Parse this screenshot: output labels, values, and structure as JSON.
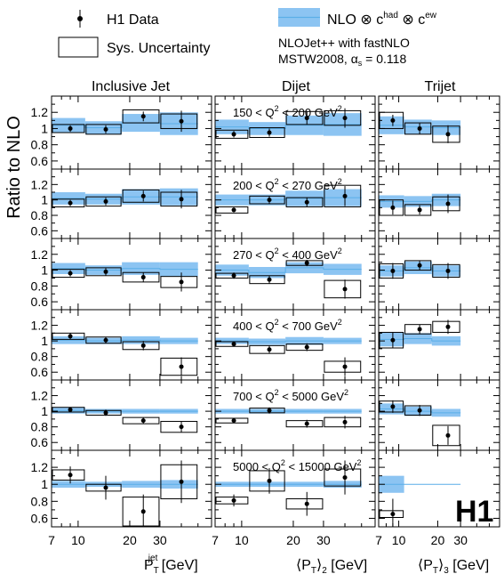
{
  "legend": {
    "data_label": "H1 Data",
    "sys_label": "Sys. Uncertainty",
    "nlo_label": "NLO ⊗ c",
    "nlo_sup1": "had",
    "nlo_mid": " ⊗ c",
    "nlo_sup2": "ew",
    "nlojet_line": "NLOJet++ with fastNLO",
    "mstw_line": "MSTW2008, α",
    "alpha_sub": "s",
    "alpha_val": " = 0.118"
  },
  "logo": "H1",
  "colors": {
    "nlo_band": "#8cc4f2",
    "nlo_line": "#5aaee8",
    "data": "#000000"
  },
  "chart_data": {
    "type": "scatter",
    "ylabel": "Ratio to NLO",
    "ylim": [
      0.5,
      1.4
    ],
    "yticks": [
      0.6,
      0.8,
      1,
      1.2
    ],
    "ytick_labels": [
      "0.6",
      "0.8",
      "1",
      "1.2"
    ],
    "x_scale": "log",
    "xlim": [
      7,
      60
    ],
    "xticks_labeled": [
      7,
      10,
      20,
      30
    ],
    "xtick_labels": [
      "7",
      "10",
      "20",
      "30"
    ],
    "xticks_minor": [
      8,
      9,
      40,
      50
    ],
    "columns": [
      {
        "title": "Inclusive Jet",
        "xlabel": "P",
        "xsup": "jet",
        "xsub": "T",
        "xunit": " [GeV]",
        "bins": [
          [
            7,
            11
          ],
          [
            11,
            18
          ],
          [
            18,
            30
          ],
          [
            30,
            50
          ]
        ],
        "x": [
          9,
          14.5,
          24,
          40
        ]
      },
      {
        "title": "Dijet",
        "xlabel": "⟨P",
        "xsub": "T",
        "xafter": "⟩",
        "xsub2": "2",
        "xunit": " [GeV]",
        "bins": [
          [
            5,
            11
          ],
          [
            11,
            18
          ],
          [
            18,
            30
          ],
          [
            30,
            50
          ]
        ],
        "x": [
          9,
          14.5,
          24,
          40
        ]
      },
      {
        "title": "Trijet",
        "xlabel": "⟨P",
        "xsub": "T",
        "xafter": "⟩",
        "xsub2": "3",
        "xunit": " [GeV]",
        "bins": [
          [
            5,
            11
          ],
          [
            11,
            18
          ],
          [
            18,
            30
          ]
        ],
        "x": [
          9,
          14.5,
          24
        ]
      }
    ],
    "rows": [
      {
        "q2_lo": "150",
        "q2_hi": "200",
        "cells": [
          {
            "y": [
              1.0,
              0.99,
              1.15,
              1.09
            ],
            "err": [
              0.04,
              0.05,
              0.06,
              0.13
            ],
            "sys": [
              0.05,
              0.06,
              0.08,
              0.09
            ],
            "nlo": [
              1.04,
              1.01,
              1.07,
              1.06
            ],
            "nlo_unc": [
              0.09,
              0.08,
              0.11,
              0.14
            ]
          },
          {
            "y": [
              0.93,
              0.95,
              1.13,
              1.13
            ],
            "err": [
              0.04,
              0.05,
              0.08,
              0.12
            ],
            "sys": [
              0.05,
              0.06,
              0.08,
              0.09
            ],
            "nlo": [
              1.02,
              1.0,
              1.04,
              1.05
            ],
            "nlo_unc": [
              0.09,
              0.08,
              0.12,
              0.14
            ]
          },
          {
            "y": [
              1.1,
              1.0,
              0.93
            ],
            "err": [
              0.07,
              0.07,
              0.11
            ],
            "sys": [
              0.1,
              0.07,
              0.1
            ],
            "nlo": [
              1.04,
              1.02,
              1.01
            ],
            "nlo_unc": [
              0.11,
              0.09,
              0.09
            ]
          }
        ]
      },
      {
        "q2_lo": "200",
        "q2_hi": "270",
        "cells": [
          {
            "y": [
              0.96,
              0.98,
              1.05,
              1.01
            ],
            "err": [
              0.04,
              0.05,
              0.07,
              0.12
            ],
            "sys": [
              0.05,
              0.06,
              0.08,
              0.09
            ],
            "nlo": [
              1.02,
              1.01,
              1.04,
              1.04
            ],
            "nlo_unc": [
              0.08,
              0.07,
              0.1,
              0.11
            ]
          },
          {
            "y": [
              0.87,
              1.0,
              0.97,
              1.05
            ],
            "err": [
              0.03,
              0.05,
              0.06,
              0.13
            ],
            "sys": [
              0.04,
              0.05,
              0.06,
              0.14
            ],
            "nlo": [
              1.0,
              1.0,
              1.02,
              1.03
            ],
            "nlo_unc": [
              0.07,
              0.07,
              0.1,
              0.11
            ]
          },
          {
            "y": [
              0.9,
              0.87,
              0.95
            ],
            "err": [
              0.09,
              0.06,
              0.12
            ],
            "sys": [
              0.1,
              0.07,
              0.09
            ],
            "nlo": [
              0.98,
              0.98,
              1.0
            ],
            "nlo_unc": [
              0.08,
              0.07,
              0.08
            ]
          }
        ]
      },
      {
        "q2_lo": "270",
        "q2_hi": "400",
        "cells": [
          {
            "y": [
              0.96,
              0.98,
              0.91,
              0.85
            ],
            "err": [
              0.04,
              0.05,
              0.06,
              0.12
            ],
            "sys": [
              0.05,
              0.05,
              0.06,
              0.07
            ],
            "nlo": [
              1.02,
              1.0,
              1.02,
              1.01
            ],
            "nlo_unc": [
              0.07,
              0.06,
              0.08,
              0.09
            ]
          },
          {
            "y": [
              0.93,
              0.88,
              1.09,
              0.76
            ],
            "err": [
              0.04,
              0.05,
              0.04,
              0.12
            ],
            "sys": [
              0.03,
              0.05,
              0.03,
              0.11
            ],
            "nlo": [
              1.0,
              0.97,
              1.03,
              1.01
            ],
            "nlo_unc": [
              0.07,
              0.07,
              0.07,
              0.07
            ]
          },
          {
            "y": [
              0.99,
              1.06,
              0.99
            ],
            "err": [
              0.1,
              0.06,
              0.1
            ],
            "sys": [
              0.09,
              0.06,
              0.08
            ],
            "nlo": [
              0.99,
              1.03,
              0.99
            ],
            "nlo_unc": [
              0.07,
              0.08,
              0.07
            ]
          }
        ]
      },
      {
        "q2_lo": "400",
        "q2_hi": "700",
        "cells": [
          {
            "y": [
              1.06,
              1.01,
              0.94,
              0.67
            ],
            "err": [
              0.04,
              0.04,
              0.06,
              0.12
            ],
            "sys": [
              0.04,
              0.04,
              0.05,
              0.11
            ],
            "nlo": [
              1.01,
              1.0,
              1.01,
              1.0
            ],
            "nlo_unc": [
              0.05,
              0.04,
              0.05,
              0.04
            ]
          },
          {
            "y": [
              0.96,
              0.89,
              0.92,
              0.67
            ],
            "err": [
              0.03,
              0.05,
              0.05,
              0.12
            ],
            "sys": [
              0.03,
              0.05,
              0.04,
              0.07
            ],
            "nlo": [
              1.0,
              0.99,
              1.0,
              1.0
            ],
            "nlo_unc": [
              0.04,
              0.04,
              0.05,
              0.04
            ]
          },
          {
            "y": [
              1.01,
              1.15,
              1.18
            ],
            "err": [
              0.1,
              0.06,
              0.09
            ],
            "sys": [
              0.1,
              0.06,
              0.07
            ],
            "nlo": [
              1.02,
              1.03,
              1.0
            ],
            "nlo_unc": [
              0.09,
              0.07,
              0.06
            ]
          }
        ]
      },
      {
        "q2_lo": "700",
        "q2_hi": "5000",
        "cells": [
          {
            "y": [
              1.02,
              0.98,
              0.88,
              0.8
            ],
            "err": [
              0.03,
              0.04,
              0.04,
              0.07
            ],
            "sys": [
              0.03,
              0.03,
              0.04,
              0.07
            ],
            "nlo": [
              1.01,
              1.0,
              1.0,
              1.0
            ],
            "nlo_unc": [
              0.04,
              0.03,
              0.03,
              0.03
            ]
          },
          {
            "y": [
              0.88,
              1.01,
              0.84,
              0.86
            ],
            "err": [
              0.03,
              0.04,
              0.05,
              0.08
            ],
            "sys": [
              0.03,
              0.03,
              0.04,
              0.06
            ],
            "nlo": [
              1.0,
              1.0,
              1.0,
              1.0
            ],
            "nlo_unc": [
              0.03,
              0.03,
              0.03,
              0.03
            ]
          },
          {
            "y": [
              1.06,
              1.01,
              0.69
            ],
            "err": [
              0.08,
              0.07,
              0.12
            ],
            "sys": [
              0.07,
              0.06,
              0.13
            ],
            "nlo": [
              1.03,
              1.0,
              0.98
            ],
            "nlo_unc": [
              0.07,
              0.06,
              0.05
            ]
          }
        ]
      },
      {
        "q2_lo": "5000",
        "q2_hi": "15000",
        "cells": [
          {
            "y": [
              1.11,
              0.96,
              0.68,
              1.03
            ],
            "err": [
              0.1,
              0.14,
              0.2,
              0.25
            ],
            "sys": [
              0.06,
              0.04,
              0.17,
              0.2
            ],
            "nlo": [
              1.0,
              1.0,
              1.0,
              1.0
            ],
            "nlo_unc": [
              0.04,
              0.03,
              0.04,
              0.05
            ]
          },
          {
            "y": [
              0.81,
              1.04,
              0.77,
              1.08
            ],
            "err": [
              0.07,
              0.15,
              0.14,
              0.2
            ],
            "sys": [
              0.04,
              0.12,
              0.06,
              0.1
            ],
            "nlo": [
              1.0,
              1.0,
              1.0,
              1.0
            ],
            "nlo_unc": [
              0.03,
              0.03,
              0.03,
              0.04
            ]
          },
          {
            "y": [
              0.65,
              null,
              null
            ],
            "err": [
              0.18,
              0,
              0
            ],
            "sys": [
              0.04,
              0,
              0
            ],
            "nlo": [
              1.0,
              1.0,
              1.0
            ],
            "nlo_unc": [
              0.1,
              0,
              0
            ]
          }
        ]
      }
    ]
  }
}
